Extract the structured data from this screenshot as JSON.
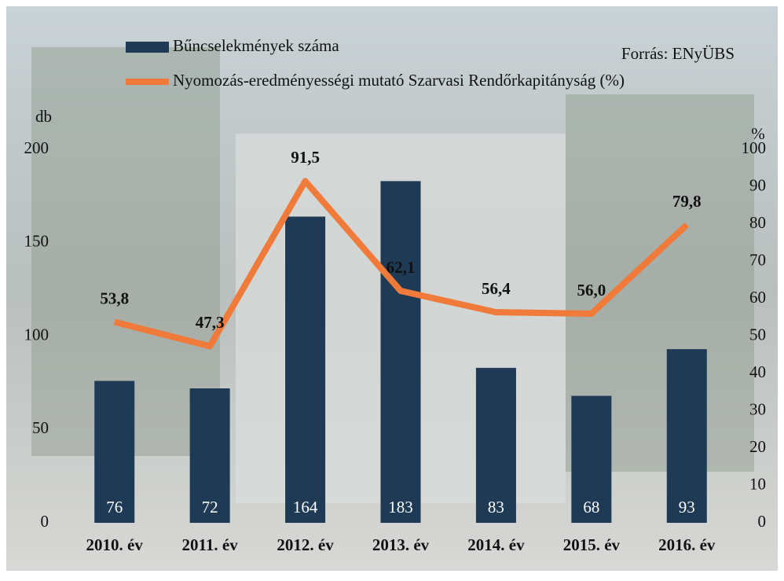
{
  "chart_data": {
    "type": "combo",
    "source": "Forrás: ENyÜBS",
    "ylabel": "db",
    "y2label": "%",
    "categories": [
      "2010. év",
      "2011. év",
      "2012. év",
      "2013. év",
      "2014. év",
      "2015. év",
      "2016. év"
    ],
    "series": [
      {
        "name": "Bűncselekmények száma",
        "type": "bar",
        "color": "#1e3a55",
        "values": [
          76,
          72,
          164,
          183,
          83,
          68,
          93
        ]
      },
      {
        "name": "Nyomozás-eredményességi mutató Szarvasi Rendőrkapitányság (%)",
        "type": "line",
        "axis": "y2",
        "color": "#f07a3a",
        "values": [
          53.8,
          47.3,
          91.5,
          62.1,
          56.4,
          56.0,
          79.8
        ],
        "value_labels": [
          "53,8",
          "47,3",
          "91,5",
          "62,1",
          "56,4",
          "56,0",
          "79,8"
        ]
      }
    ],
    "ylim": [
      0,
      200
    ],
    "yticks": [
      0,
      50,
      100,
      150,
      200
    ],
    "y2lim": [
      0,
      100
    ],
    "y2ticks": [
      0,
      10,
      20,
      30,
      40,
      50,
      60,
      70,
      80,
      90,
      100
    ],
    "legend": "top-left"
  }
}
